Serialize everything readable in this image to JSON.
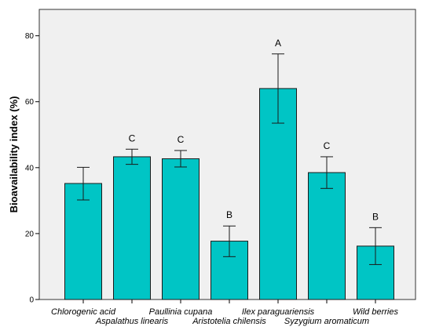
{
  "chart_data": {
    "type": "bar",
    "title": "",
    "xlabel": "",
    "ylabel": "Bioavailability index (%)",
    "ylim": [
      0,
      88
    ],
    "yticks": [
      0,
      20,
      40,
      60,
      80
    ],
    "categories": [
      "Chlorogenic acid",
      "Aspalathus linearis",
      "Paullinia cupana",
      "Aristotelia chilensis",
      "Ilex paraguariensis",
      "Syzygium aromaticum",
      "Wild berries"
    ],
    "values": [
      35.2,
      43.3,
      42.7,
      17.7,
      64.0,
      38.5,
      16.2
    ],
    "error_low": [
      30.2,
      41.0,
      40.2,
      13.0,
      53.5,
      33.7,
      10.6
    ],
    "error_high": [
      40.1,
      45.6,
      45.2,
      22.3,
      74.5,
      43.3,
      21.8
    ],
    "group_labels": [
      "",
      "C",
      "C",
      "B",
      "A",
      "C",
      "B"
    ],
    "bar_color": "#00C5C5",
    "plot_background": "#F0F0F0",
    "grid": false,
    "legend": "none"
  }
}
